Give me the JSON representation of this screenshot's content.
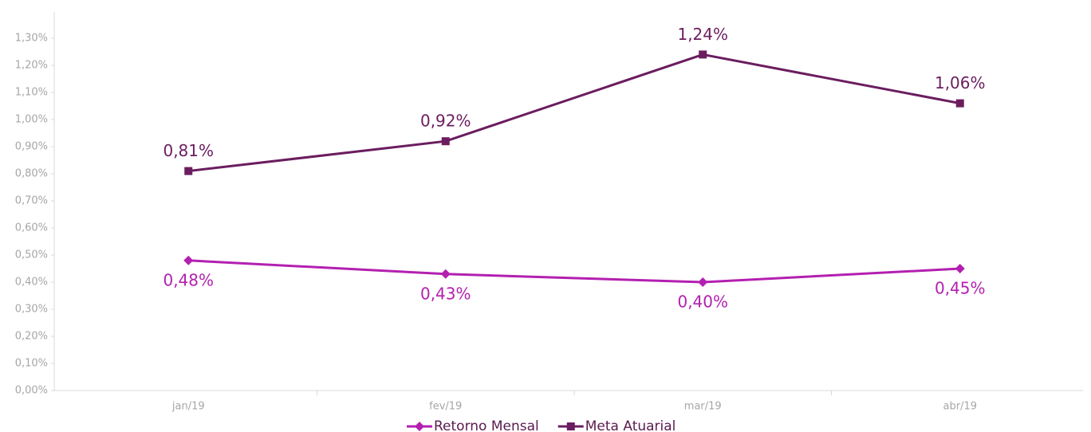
{
  "chart_data": {
    "type": "line",
    "categories": [
      "jan/19",
      "fev/19",
      "mar/19",
      "abr/19"
    ],
    "series": [
      {
        "name": "Retorno Mensal",
        "color": "#b320b0",
        "marker": "diamond",
        "values": [
          0.48,
          0.43,
          0.4,
          0.45
        ],
        "value_labels": [
          "0,48%",
          "0,43%",
          "0,40%",
          "0,45%"
        ]
      },
      {
        "name": "Meta Atuarial",
        "color": "#6b1d5f",
        "marker": "square",
        "values": [
          0.81,
          0.92,
          1.24,
          1.06
        ],
        "value_labels": [
          "0,81%",
          "0,92%",
          "1,24%",
          "1,06%"
        ]
      }
    ],
    "ylim": [
      0,
      1.3
    ],
    "yticks": [
      {
        "value": 0,
        "label": "0,00%"
      },
      {
        "value": 0.1,
        "label": "0,10%"
      },
      {
        "value": 0.2,
        "label": "0,20%"
      },
      {
        "value": 0.3,
        "label": "0,30%"
      },
      {
        "value": 0.4,
        "label": "0,40%"
      },
      {
        "value": 0.5,
        "label": "0,50%"
      },
      {
        "value": 0.6,
        "label": "0,60%"
      },
      {
        "value": 0.7,
        "label": "0,70%"
      },
      {
        "value": 0.8,
        "label": "0,80%"
      },
      {
        "value": 0.9,
        "label": "0,90%"
      },
      {
        "value": 1.0,
        "label": "1,00%"
      },
      {
        "value": 1.1,
        "label": "1,10%"
      },
      {
        "value": 1.2,
        "label": "1,20%"
      },
      {
        "value": 1.3,
        "label": "1,30%"
      }
    ],
    "grid": false,
    "legend": "bottom"
  }
}
